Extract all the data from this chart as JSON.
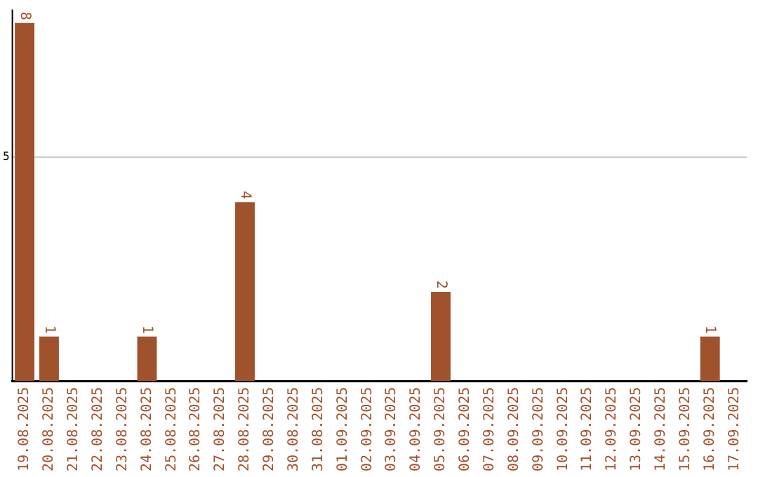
{
  "chart_data": {
    "type": "bar",
    "categories": [
      "19.08.2025",
      "20.08.2025",
      "21.08.2025",
      "22.08.2025",
      "23.08.2025",
      "24.08.2025",
      "25.08.2025",
      "26.08.2025",
      "27.08.2025",
      "28.08.2025",
      "29.08.2025",
      "30.08.2025",
      "31.08.2025",
      "01.09.2025",
      "02.09.2025",
      "03.09.2025",
      "04.09.2025",
      "05.09.2025",
      "06.09.2025",
      "07.09.2025",
      "08.09.2025",
      "09.09.2025",
      "10.09.2025",
      "11.09.2025",
      "12.09.2025",
      "13.09.2025",
      "14.09.2025",
      "15.09.2025",
      "16.09.2025",
      "17.09.2025"
    ],
    "values": [
      8,
      1,
      0,
      0,
      0,
      1,
      0,
      0,
      0,
      4,
      0,
      0,
      0,
      0,
      0,
      0,
      0,
      2,
      0,
      0,
      0,
      0,
      0,
      0,
      0,
      0,
      0,
      0,
      1,
      0
    ],
    "value_labels": [
      "8",
      "1",
      null,
      null,
      null,
      "1",
      null,
      null,
      null,
      "4",
      null,
      null,
      null,
      null,
      null,
      null,
      null,
      "2",
      null,
      null,
      null,
      null,
      null,
      null,
      null,
      null,
      null,
      null,
      "1",
      null
    ],
    "color": "#a0522d",
    "ylim": [
      0,
      8.3
    ],
    "yticks": [
      5
    ],
    "grid": "y",
    "legend": false
  }
}
